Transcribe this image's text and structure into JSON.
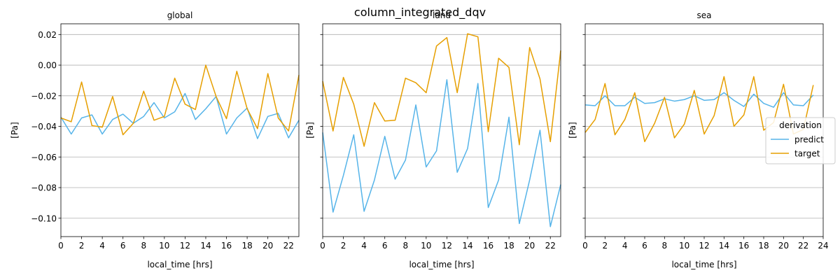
{
  "figure": {
    "suptitle": "column_integrated_dqv"
  },
  "legend": {
    "title": "derivation",
    "entries": [
      {
        "label": "predict",
        "color": "#56b4e9"
      },
      {
        "label": "target",
        "color": "#e69f00"
      }
    ]
  },
  "chart_data": [
    {
      "type": "line",
      "title": "global",
      "xlabel": "local_time [hrs]",
      "ylabel": "[Pa]",
      "xlim": [
        0,
        23
      ],
      "ylim": [
        -0.112,
        0.027
      ],
      "xticks": [
        0,
        2,
        4,
        6,
        8,
        10,
        12,
        14,
        16,
        18,
        20,
        22
      ],
      "yticks": [
        0.02,
        0.0,
        -0.02,
        -0.04,
        -0.06,
        -0.08,
        -0.1
      ],
      "ytick_labels": [
        "0.02",
        "0.00",
        "−0.02",
        "−0.04",
        "−0.06",
        "−0.08",
        "−0.10"
      ],
      "show_ytick_labels": true,
      "grid": "y",
      "x": [
        0,
        1,
        2,
        3,
        4,
        5,
        6,
        7,
        8,
        9,
        10,
        11,
        12,
        13,
        14,
        15,
        16,
        17,
        18,
        19,
        20,
        21,
        22,
        23
      ],
      "series": [
        {
          "name": "predict",
          "color": "#56b4e9",
          "values": [
            -0.034,
            -0.045,
            -0.0345,
            -0.0325,
            -0.045,
            -0.0355,
            -0.032,
            -0.038,
            -0.0335,
            -0.0245,
            -0.0345,
            -0.0305,
            -0.0185,
            -0.0355,
            -0.0285,
            -0.0205,
            -0.045,
            -0.0345,
            -0.028,
            -0.048,
            -0.0335,
            -0.0315,
            -0.0475,
            -0.036
          ]
        },
        {
          "name": "target",
          "color": "#e69f00",
          "values": [
            -0.0345,
            -0.037,
            -0.011,
            -0.0395,
            -0.0405,
            -0.0205,
            -0.0455,
            -0.038,
            -0.017,
            -0.036,
            -0.0335,
            -0.0085,
            -0.0255,
            -0.029,
            0.0,
            -0.0205,
            -0.035,
            -0.004,
            -0.0285,
            -0.0415,
            -0.0055,
            -0.0345,
            -0.043,
            -0.0065
          ]
        }
      ]
    },
    {
      "type": "line",
      "title": "land",
      "xlabel": "local_time [hrs]",
      "ylabel": "[Pa]",
      "xlim": [
        0,
        23
      ],
      "ylim": [
        -0.112,
        0.027
      ],
      "xticks": [
        0,
        2,
        4,
        6,
        8,
        10,
        12,
        14,
        16,
        18,
        20,
        22
      ],
      "yticks": [
        0.02,
        0.0,
        -0.02,
        -0.04,
        -0.06,
        -0.08,
        -0.1
      ],
      "show_ytick_labels": false,
      "grid": "y",
      "x": [
        0,
        1,
        2,
        3,
        4,
        5,
        6,
        7,
        8,
        9,
        10,
        11,
        12,
        13,
        14,
        15,
        16,
        17,
        18,
        19,
        20,
        21,
        22,
        23
      ],
      "series": [
        {
          "name": "predict",
          "color": "#56b4e9",
          "values": [
            -0.044,
            -0.096,
            -0.072,
            -0.0455,
            -0.0955,
            -0.075,
            -0.0465,
            -0.0745,
            -0.062,
            -0.026,
            -0.0665,
            -0.056,
            -0.0095,
            -0.07,
            -0.0545,
            -0.012,
            -0.093,
            -0.075,
            -0.034,
            -0.1035,
            -0.075,
            -0.0425,
            -0.1055,
            -0.078
          ]
        },
        {
          "name": "target",
          "color": "#e69f00",
          "values": [
            -0.0105,
            -0.043,
            -0.008,
            -0.0255,
            -0.053,
            -0.0245,
            -0.0365,
            -0.036,
            -0.0085,
            -0.0115,
            -0.018,
            0.0125,
            0.018,
            -0.018,
            0.0205,
            0.0185,
            -0.0435,
            0.0045,
            -0.0015,
            -0.052,
            0.0115,
            -0.009,
            -0.05,
            0.0095
          ]
        }
      ]
    },
    {
      "type": "line",
      "title": "sea",
      "xlabel": "local_time [hrs]",
      "ylabel": "[Pa]",
      "xlim": [
        0,
        24
      ],
      "ylim": [
        -0.112,
        0.027
      ],
      "xticks": [
        0,
        2,
        4,
        6,
        8,
        10,
        12,
        14,
        16,
        18,
        20,
        22,
        24
      ],
      "yticks": [
        0.02,
        0.0,
        -0.02,
        -0.04,
        -0.06,
        -0.08,
        -0.1
      ],
      "show_ytick_labels": false,
      "grid": "y",
      "x": [
        0,
        1,
        2,
        3,
        4,
        5,
        6,
        7,
        8,
        9,
        10,
        11,
        12,
        13,
        14,
        15,
        16,
        17,
        18,
        19,
        20,
        21,
        22,
        23
      ],
      "series": [
        {
          "name": "predict",
          "color": "#56b4e9",
          "values": [
            -0.026,
            -0.0265,
            -0.02,
            -0.0265,
            -0.0265,
            -0.021,
            -0.025,
            -0.0245,
            -0.022,
            -0.0235,
            -0.0225,
            -0.02,
            -0.023,
            -0.0225,
            -0.018,
            -0.023,
            -0.027,
            -0.019,
            -0.025,
            -0.0275,
            -0.018,
            -0.026,
            -0.0265,
            -0.0195
          ]
        },
        {
          "name": "target",
          "color": "#e69f00",
          "values": [
            -0.044,
            -0.0355,
            -0.012,
            -0.0455,
            -0.0355,
            -0.018,
            -0.05,
            -0.038,
            -0.021,
            -0.0475,
            -0.0385,
            -0.0165,
            -0.045,
            -0.033,
            -0.0075,
            -0.04,
            -0.0325,
            -0.0075,
            -0.0425,
            -0.0375,
            -0.0125,
            -0.045,
            -0.042,
            -0.013
          ]
        }
      ]
    }
  ]
}
